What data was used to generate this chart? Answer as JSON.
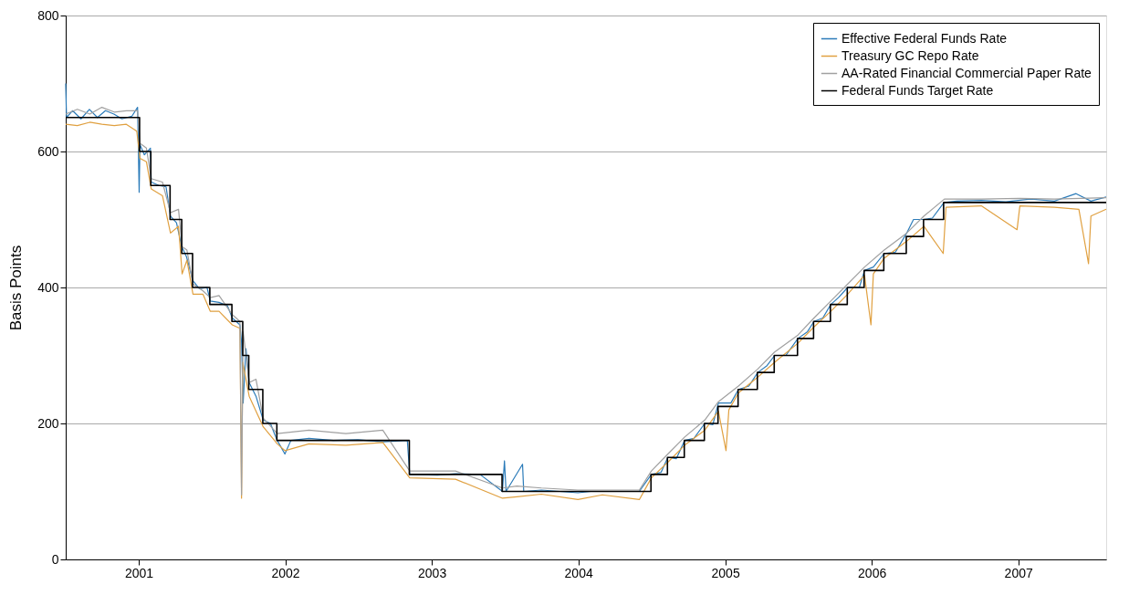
{
  "chart_data": {
    "type": "line",
    "ylabel": "Basis Points",
    "ylim": [
      0,
      800
    ],
    "yticks": [
      0,
      200,
      400,
      600,
      800
    ],
    "xlim": [
      "2000-07-03",
      "2007-08-08"
    ],
    "xticks": [
      "2001",
      "2002",
      "2003",
      "2004",
      "2005",
      "2006",
      "2007"
    ],
    "grid": "y",
    "legend": "top right",
    "line_style": "solid",
    "marker": "none",
    "series": [
      {
        "name": "Effective Federal Funds Rate",
        "color": "#2b7bb9",
        "x": [
          "2000-07-03",
          "2000-07-05",
          "2000-07-20",
          "2000-08-10",
          "2000-08-31",
          "2000-09-20",
          "2000-10-10",
          "2000-10-31",
          "2000-11-20",
          "2000-12-15",
          "2000-12-29",
          "2001-01-02",
          "2001-01-04",
          "2001-01-15",
          "2001-01-30",
          "2001-02-01",
          "2001-02-20",
          "2001-03-10",
          "2001-03-21",
          "2001-04-05",
          "2001-04-18",
          "2001-04-30",
          "2001-05-16",
          "2001-06-01",
          "2001-06-20",
          "2001-06-28",
          "2001-07-20",
          "2001-08-10",
          "2001-08-22",
          "2001-09-10",
          "2001-09-14",
          "2001-09-18",
          "2001-09-25",
          "2001-10-03",
          "2001-10-20",
          "2001-11-07",
          "2001-11-25",
          "2001-12-05",
          "2001-12-12",
          "2001-12-31",
          "2002-01-15",
          "2002-03-01",
          "2002-05-01",
          "2002-07-01",
          "2002-09-01",
          "2002-11-01",
          "2002-11-07",
          "2003-01-15",
          "2003-03-01",
          "2003-05-01",
          "2003-06-26",
          "2003-07-01",
          "2003-07-05",
          "2003-08-15",
          "2003-08-18",
          "2003-10-01",
          "2003-12-31",
          "2004-02-01",
          "2004-04-01",
          "2004-06-01",
          "2004-07-01",
          "2004-07-25",
          "2004-08-11",
          "2004-09-01",
          "2004-09-22",
          "2004-10-15",
          "2004-11-11",
          "2004-12-01",
          "2004-12-15",
          "2005-01-15",
          "2005-02-03",
          "2005-03-01",
          "2005-03-23",
          "2005-04-15",
          "2005-05-04",
          "2005-06-01",
          "2005-07-01",
          "2005-07-25",
          "2005-08-10",
          "2005-09-01",
          "2005-09-21",
          "2005-10-10",
          "2005-11-02",
          "2005-12-01",
          "2005-12-14",
          "2006-01-05",
          "2006-02-01",
          "2006-03-01",
          "2006-03-29",
          "2006-04-15",
          "2006-05-11",
          "2006-06-01",
          "2006-06-30",
          "2006-08-01",
          "2006-10-01",
          "2006-12-01",
          "2007-02-01",
          "2007-04-01",
          "2007-05-25",
          "2007-07-01",
          "2007-08-08"
        ],
        "values": [
          700,
          650,
          660,
          648,
          662,
          650,
          660,
          655,
          648,
          652,
          665,
          540,
          610,
          595,
          605,
          555,
          550,
          548,
          505,
          495,
          460,
          445,
          410,
          398,
          400,
          380,
          378,
          373,
          355,
          345,
          320,
          230,
          310,
          260,
          240,
          205,
          200,
          185,
          175,
          155,
          175,
          178,
          175,
          176,
          173,
          175,
          125,
          124,
          126,
          125,
          100,
          145,
          100,
          140,
          100,
          102,
          98,
          100,
          100,
          100,
          125,
          128,
          150,
          148,
          175,
          178,
          200,
          198,
          230,
          230,
          250,
          255,
          275,
          285,
          300,
          300,
          325,
          335,
          350,
          355,
          375,
          385,
          400,
          400,
          425,
          430,
          450,
          452,
          480,
          500,
          500,
          502,
          525,
          527,
          528,
          526,
          530,
          527,
          538,
          527,
          533
        ]
      },
      {
        "name": "Treasury GC Repo Rate",
        "color": "#e0a040",
        "x": [
          "2000-07-03",
          "2000-08-01",
          "2000-09-01",
          "2000-10-01",
          "2000-11-01",
          "2000-12-01",
          "2000-12-27",
          "2001-01-04",
          "2001-01-20",
          "2001-02-01",
          "2001-03-01",
          "2001-03-21",
          "2001-04-10",
          "2001-04-19",
          "2001-05-01",
          "2001-05-16",
          "2001-06-10",
          "2001-06-28",
          "2001-07-20",
          "2001-08-22",
          "2001-09-10",
          "2001-09-14",
          "2001-09-17",
          "2001-10-03",
          "2001-11-07",
          "2001-12-12",
          "2001-12-31",
          "2002-03-01",
          "2002-06-01",
          "2002-09-01",
          "2002-11-07",
          "2003-03-01",
          "2003-06-26",
          "2003-08-01",
          "2003-10-01",
          "2003-12-31",
          "2004-03-01",
          "2004-06-01",
          "2004-07-01",
          "2004-08-11",
          "2004-09-22",
          "2004-11-11",
          "2004-12-15",
          "2005-01-03",
          "2005-01-10",
          "2005-02-03",
          "2005-03-23",
          "2005-05-04",
          "2005-07-01",
          "2005-08-10",
          "2005-09-21",
          "2005-11-02",
          "2005-12-14",
          "2005-12-30",
          "2006-01-05",
          "2006-02-01",
          "2006-03-29",
          "2006-05-11",
          "2006-06-28",
          "2006-07-05",
          "2006-10-01",
          "2006-12-29",
          "2007-01-05",
          "2007-04-01",
          "2007-06-01",
          "2007-06-25",
          "2007-07-01",
          "2007-08-08"
        ],
        "values": [
          640,
          638,
          643,
          640,
          638,
          640,
          630,
          590,
          585,
          545,
          535,
          480,
          490,
          420,
          440,
          390,
          390,
          365,
          365,
          345,
          340,
          90,
          290,
          240,
          195,
          170,
          160,
          170,
          168,
          172,
          120,
          118,
          90,
          92,
          96,
          88,
          95,
          88,
          120,
          143,
          168,
          190,
          218,
          160,
          220,
          245,
          268,
          290,
          318,
          342,
          365,
          390,
          418,
          345,
          420,
          443,
          468,
          490,
          450,
          518,
          520,
          485,
          520,
          518,
          515,
          435,
          505,
          515
        ]
      },
      {
        "name": "AA-Rated Financial Commercial Paper Rate",
        "color": "#a0a0a0",
        "x": [
          "2000-07-03",
          "2000-08-01",
          "2000-09-01",
          "2000-10-01",
          "2000-11-01",
          "2000-12-01",
          "2000-12-29",
          "2001-01-04",
          "2001-01-20",
          "2001-02-01",
          "2001-03-01",
          "2001-03-21",
          "2001-04-10",
          "2001-04-19",
          "2001-05-01",
          "2001-05-16",
          "2001-06-10",
          "2001-06-28",
          "2001-07-20",
          "2001-08-22",
          "2001-09-10",
          "2001-09-14",
          "2001-09-18",
          "2001-10-03",
          "2001-10-20",
          "2001-11-07",
          "2001-12-12",
          "2002-03-01",
          "2002-06-01",
          "2002-09-01",
          "2002-11-07",
          "2003-03-01",
          "2003-06-26",
          "2003-08-01",
          "2003-10-01",
          "2003-12-31",
          "2004-03-01",
          "2004-06-01",
          "2004-07-01",
          "2004-08-11",
          "2004-09-22",
          "2004-11-11",
          "2004-12-15",
          "2005-02-03",
          "2005-03-23",
          "2005-05-04",
          "2005-07-01",
          "2005-08-10",
          "2005-09-21",
          "2005-11-02",
          "2005-12-14",
          "2006-02-01",
          "2006-03-29",
          "2006-05-11",
          "2006-07-01",
          "2006-10-01",
          "2007-01-05",
          "2007-04-01",
          "2007-08-08"
        ],
        "values": [
          655,
          662,
          655,
          665,
          658,
          660,
          660,
          612,
          605,
          560,
          555,
          510,
          515,
          460,
          455,
          405,
          395,
          385,
          388,
          360,
          350,
          95,
          335,
          260,
          265,
          208,
          185,
          190,
          185,
          190,
          130,
          130,
          105,
          108,
          105,
          102,
          102,
          102,
          130,
          155,
          180,
          205,
          232,
          255,
          280,
          305,
          330,
          355,
          380,
          405,
          430,
          455,
          480,
          505,
          530,
          530,
          531,
          530,
          532
        ]
      },
      {
        "name": "Federal Funds Target Rate",
        "color": "#000000",
        "type": "step",
        "x": [
          "2000-07-03",
          "2001-01-03",
          "2001-01-31",
          "2001-03-20",
          "2001-04-18",
          "2001-05-15",
          "2001-06-27",
          "2001-08-21",
          "2001-09-17",
          "2001-10-02",
          "2001-11-06",
          "2001-12-11",
          "2002-11-06",
          "2003-06-25",
          "2004-06-30",
          "2004-08-10",
          "2004-09-21",
          "2004-11-10",
          "2004-12-14",
          "2005-02-02",
          "2005-03-22",
          "2005-05-03",
          "2005-06-30",
          "2005-08-09",
          "2005-09-20",
          "2005-11-01",
          "2005-12-13",
          "2006-01-31",
          "2006-03-28",
          "2006-05-10",
          "2006-06-29",
          "2007-08-08"
        ],
        "values": [
          650,
          600,
          550,
          500,
          450,
          400,
          375,
          350,
          300,
          250,
          200,
          175,
          125,
          100,
          125,
          150,
          175,
          200,
          225,
          250,
          275,
          300,
          325,
          350,
          375,
          400,
          425,
          450,
          475,
          500,
          525,
          525
        ]
      }
    ]
  }
}
